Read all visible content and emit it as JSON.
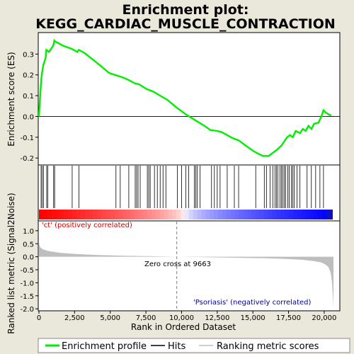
{
  "title_line1": "Enrichment plot:",
  "title_line2": "KEGG_CARDIAC_MUSCLE_CONTRACTION",
  "chart_data": {
    "type": "line",
    "x_range": [
      0,
      20650
    ],
    "panels": {
      "enrichment": {
        "ylabel": "Enrichment score (ES)",
        "ylim": [
          -0.23,
          0.4
        ],
        "yticks": [
          -0.2,
          -0.1,
          0.0,
          0.1,
          0.2,
          0.3
        ],
        "ytick_labels": [
          "-0.2",
          "-0.1",
          "0.0",
          "0.1",
          "0.2",
          "0.3"
        ],
        "series": [
          {
            "name": "Enrichment profile",
            "color": "#00ee00",
            "x": [
              0,
              60,
              120,
              180,
              300,
              460,
              520,
              700,
              1000,
              1080,
              1150,
              1700,
              2300,
              2700,
              2800,
              3200,
              4300,
              4900,
              5300,
              5800,
              6300,
              6700,
              7000,
              7600,
              8000,
              8500,
              9000,
              9700,
              10300,
              11000,
              11600,
              12000,
              12500,
              12800,
              13200,
              13600,
              14000,
              14500,
              15000,
              15400,
              15700,
              16100,
              16400,
              16700,
              17000,
              17200,
              17400,
              17600,
              17800,
              18000,
              18300,
              18500,
              18700,
              18900,
              19100,
              19300,
              19600,
              19800,
              19950,
              20100,
              20300,
              20500
            ],
            "y": [
              0.0,
              0.07,
              0.135,
              0.19,
              0.245,
              0.28,
              0.32,
              0.31,
              0.34,
              0.365,
              0.36,
              0.34,
              0.325,
              0.31,
              0.32,
              0.305,
              0.245,
              0.21,
              0.2,
              0.19,
              0.175,
              0.16,
              0.155,
              0.13,
              0.12,
              0.1,
              0.08,
              0.04,
              0.01,
              -0.02,
              -0.045,
              -0.065,
              -0.07,
              -0.075,
              -0.09,
              -0.105,
              -0.115,
              -0.14,
              -0.165,
              -0.18,
              -0.19,
              -0.19,
              -0.175,
              -0.16,
              -0.14,
              -0.12,
              -0.1,
              -0.09,
              -0.1,
              -0.07,
              -0.08,
              -0.06,
              -0.07,
              -0.045,
              -0.06,
              -0.035,
              -0.03,
              0.0,
              0.03,
              0.02,
              0.01,
              0.005
            ]
          }
        ]
      },
      "hits": {
        "positions": [
          150,
          230,
          320,
          540,
          620,
          1030,
          1100,
          2330,
          2800,
          5400,
          5700,
          6300,
          6750,
          6850,
          6950,
          7100,
          7600,
          7700,
          7800,
          8100,
          8300,
          8500,
          8700,
          8900,
          9700,
          10000,
          10300,
          10500,
          10900,
          11000,
          11100,
          11300,
          12100,
          12300,
          12500,
          12700,
          13200,
          13700,
          14000,
          15200,
          15800,
          15950,
          16200,
          16400,
          16550,
          16650,
          16750,
          16900,
          17000,
          17100,
          17200,
          17300,
          17450,
          17550,
          17700,
          17800,
          17900,
          18100,
          18300,
          18800,
          19100,
          19400,
          19700,
          19950
        ]
      },
      "ranking": {
        "ylabel": "Ranked list metric (Signal2Noise)",
        "ylim": [
          -2.05,
          1.35
        ],
        "yticks": [
          -2.0,
          -1.5,
          -1.0,
          -0.5,
          0.0,
          0.5,
          1.0
        ],
        "ytick_labels": [
          "-2.0",
          "-1.5",
          "-1.0",
          "-0.5",
          "0.0",
          "0.5",
          "1.0"
        ],
        "series": [
          {
            "name": "Ranking metric scores",
            "color": "#bebebe",
            "x": [
              0,
              50,
              150,
              300,
              600,
              1000,
              1500,
              2500,
              4000,
              6000,
              8000,
              9663,
              12000,
              14000,
              16000,
              17500,
              18500,
              19300,
              19800,
              20100,
              20300,
              20450,
              20550,
              20620,
              20650
            ],
            "y": [
              0.55,
              0.4,
              0.33,
              0.28,
              0.23,
              0.19,
              0.15,
              0.11,
              0.07,
              0.04,
              0.02,
              0.0,
              -0.02,
              -0.04,
              -0.06,
              -0.09,
              -0.12,
              -0.17,
              -0.22,
              -0.3,
              -0.4,
              -0.6,
              -1.0,
              -1.6,
              -1.95
            ]
          }
        ],
        "zero_cross_label": "Zero cross at 9663",
        "zero_cross_x": 9663,
        "pos_label": "'ct' (positively correlated)",
        "neg_label": "'Psoriasis' (negatively correlated)"
      }
    },
    "xlabel": "Rank in Ordered Dataset",
    "xticks": [
      0,
      2500,
      5000,
      7500,
      10000,
      12500,
      15000,
      17500,
      20000
    ],
    "xtick_labels": [
      "0",
      "2,500",
      "5,000",
      "7,500",
      "10,000",
      "12,500",
      "15,000",
      "17,500",
      "20,000"
    ],
    "legend": {
      "placement": "bottom",
      "items": [
        {
          "label": "Enrichment profile",
          "color": "#00ee00"
        },
        {
          "label": "Hits",
          "color": "#000000"
        },
        {
          "label": "Ranking metric scores",
          "color": "#bebebe"
        }
      ]
    },
    "colors": {
      "pos_band": "#ff0000",
      "neg_band": "#0000ff",
      "zero_line": "#808080",
      "neg_label_color": "#0000aa",
      "pos_label_color": "#cc0000"
    }
  }
}
